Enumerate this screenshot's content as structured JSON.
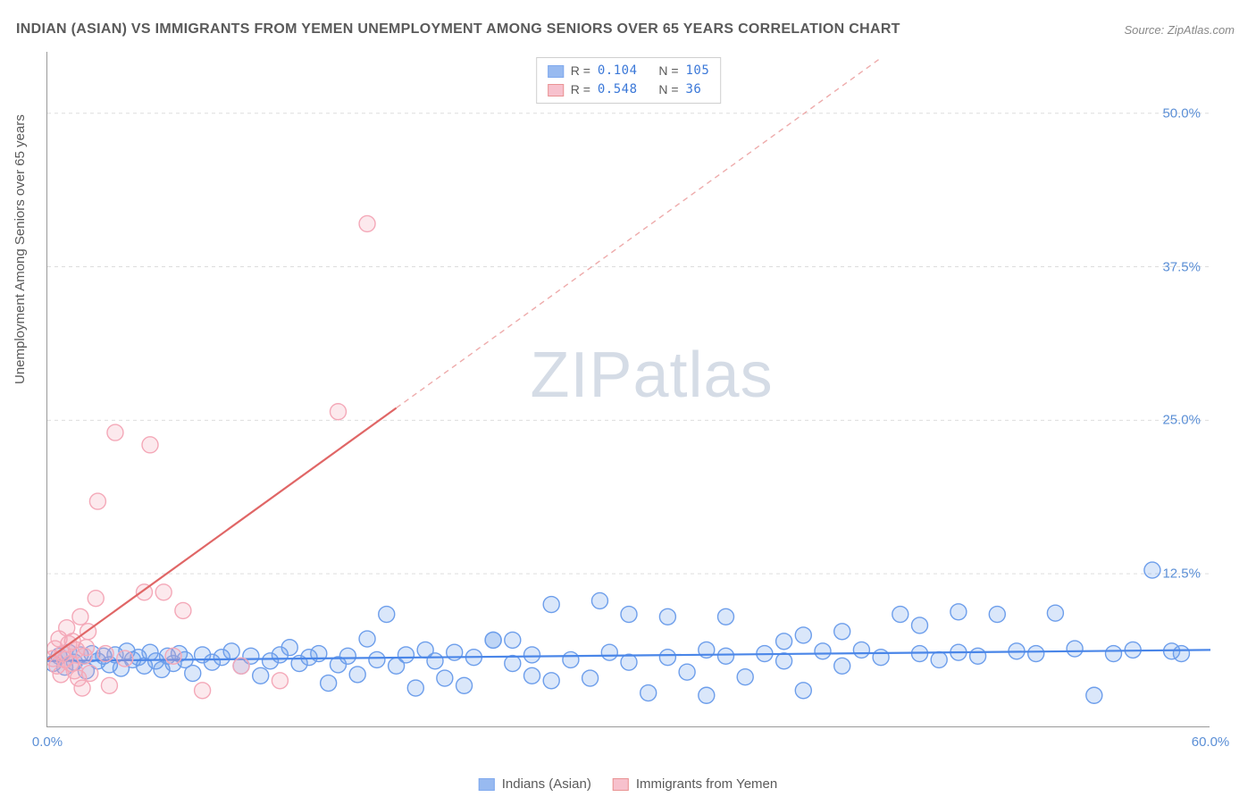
{
  "title": "INDIAN (ASIAN) VS IMMIGRANTS FROM YEMEN UNEMPLOYMENT AMONG SENIORS OVER 65 YEARS CORRELATION CHART",
  "source": "Source: ZipAtlas.com",
  "watermark_a": "ZIP",
  "watermark_b": "atlas",
  "y_axis_label": "Unemployment Among Seniors over 65 years",
  "chart": {
    "type": "scatter",
    "background_color": "#ffffff",
    "grid_color": "#dddddd",
    "axis_color": "#999999",
    "xlim": [
      0,
      60
    ],
    "ylim": [
      0,
      55
    ],
    "xtick_labels": [
      {
        "v": 0,
        "label": "0.0%"
      },
      {
        "v": 60,
        "label": "60.0%"
      }
    ],
    "ytick_labels": [
      {
        "v": 12.5,
        "label": "12.5%"
      },
      {
        "v": 25.0,
        "label": "25.0%"
      },
      {
        "v": 37.5,
        "label": "37.5%"
      },
      {
        "v": 50.0,
        "label": "50.0%"
      }
    ],
    "grid_rows": [
      12.5,
      25.0,
      37.5,
      50.0
    ],
    "marker_radius": 9,
    "marker_fill_opacity": 0.25,
    "line_width": 2.2,
    "series": [
      {
        "id": "indians",
        "label": "Indians (Asian)",
        "color": "#6d9eeb",
        "stroke_color": "#4a86e8",
        "R": "0.104",
        "N": "105",
        "trend": {
          "x1": 0,
          "y1": 5.4,
          "x2": 60,
          "y2": 6.3,
          "dash": "0",
          "extrap_dash": "0"
        },
        "points": [
          [
            0.3,
            5.2
          ],
          [
            0.6,
            5.8
          ],
          [
            0.9,
            4.9
          ],
          [
            1.1,
            6.1
          ],
          [
            1.4,
            5.3
          ],
          [
            1.7,
            5.9
          ],
          [
            2.0,
            4.6
          ],
          [
            2.3,
            6.0
          ],
          [
            2.6,
            5.4
          ],
          [
            2.9,
            5.8
          ],
          [
            3.2,
            5.1
          ],
          [
            3.5,
            5.9
          ],
          [
            3.8,
            4.8
          ],
          [
            4.1,
            6.2
          ],
          [
            4.4,
            5.5
          ],
          [
            4.7,
            5.7
          ],
          [
            5.0,
            5.0
          ],
          [
            5.3,
            6.1
          ],
          [
            5.6,
            5.4
          ],
          [
            5.9,
            4.7
          ],
          [
            6.2,
            5.8
          ],
          [
            6.5,
            5.2
          ],
          [
            6.8,
            6.0
          ],
          [
            7.1,
            5.5
          ],
          [
            7.5,
            4.4
          ],
          [
            8.0,
            5.9
          ],
          [
            8.5,
            5.3
          ],
          [
            9.0,
            5.7
          ],
          [
            9.5,
            6.2
          ],
          [
            10.0,
            5.0
          ],
          [
            10.5,
            5.8
          ],
          [
            11.0,
            4.2
          ],
          [
            11.5,
            5.4
          ],
          [
            12.0,
            5.9
          ],
          [
            12.5,
            6.5
          ],
          [
            13.0,
            5.2
          ],
          [
            13.5,
            5.7
          ],
          [
            14.0,
            6.0
          ],
          [
            14.5,
            3.6
          ],
          [
            15.0,
            5.1
          ],
          [
            15.5,
            5.8
          ],
          [
            16.0,
            4.3
          ],
          [
            16.5,
            7.2
          ],
          [
            17.0,
            5.5
          ],
          [
            17.5,
            9.2
          ],
          [
            18.0,
            5.0
          ],
          [
            18.5,
            5.9
          ],
          [
            19.0,
            3.2
          ],
          [
            19.5,
            6.3
          ],
          [
            20.0,
            5.4
          ],
          [
            20.5,
            4.0
          ],
          [
            21.0,
            6.1
          ],
          [
            21.5,
            3.4
          ],
          [
            22.0,
            5.7
          ],
          [
            23.0,
            7.1
          ],
          [
            23.0,
            7.1
          ],
          [
            24.0,
            5.2
          ],
          [
            24.0,
            7.1
          ],
          [
            25.0,
            5.9
          ],
          [
            25.0,
            4.2
          ],
          [
            26.0,
            3.8
          ],
          [
            26.0,
            10.0
          ],
          [
            27.0,
            5.5
          ],
          [
            28.0,
            4.0
          ],
          [
            28.5,
            10.3
          ],
          [
            29.0,
            6.1
          ],
          [
            30.0,
            5.3
          ],
          [
            30.0,
            9.2
          ],
          [
            31.0,
            2.8
          ],
          [
            32.0,
            5.7
          ],
          [
            32.0,
            9.0
          ],
          [
            33.0,
            4.5
          ],
          [
            34.0,
            6.3
          ],
          [
            34.0,
            2.6
          ],
          [
            35.0,
            5.8
          ],
          [
            35.0,
            9.0
          ],
          [
            36.0,
            4.1
          ],
          [
            37.0,
            6.0
          ],
          [
            38.0,
            5.4
          ],
          [
            38.0,
            7.0
          ],
          [
            39.0,
            7.5
          ],
          [
            39.0,
            3.0
          ],
          [
            40.0,
            6.2
          ],
          [
            41.0,
            5.0
          ],
          [
            41.0,
            7.8
          ],
          [
            42.0,
            6.3
          ],
          [
            43.0,
            5.7
          ],
          [
            44.0,
            9.2
          ],
          [
            45.0,
            6.0
          ],
          [
            45.0,
            8.3
          ],
          [
            46.0,
            5.5
          ],
          [
            47.0,
            6.1
          ],
          [
            47.0,
            9.4
          ],
          [
            48.0,
            5.8
          ],
          [
            49.0,
            9.2
          ],
          [
            50.0,
            6.2
          ],
          [
            51.0,
            6.0
          ],
          [
            52.0,
            9.3
          ],
          [
            53.0,
            6.4
          ],
          [
            54.0,
            2.6
          ],
          [
            55.0,
            6.0
          ],
          [
            56.0,
            6.3
          ],
          [
            57.0,
            12.8
          ],
          [
            58.0,
            6.2
          ],
          [
            58.5,
            6.0
          ]
        ]
      },
      {
        "id": "yemen",
        "label": "Immigrants from Yemen",
        "color": "#f4a8b8",
        "stroke_color": "#e06666",
        "R": "0.548",
        "N": "36",
        "trend": {
          "x1": 0,
          "y1": 5.5,
          "x2": 18,
          "y2": 26.0,
          "dash": "0",
          "extrap_x2": 43,
          "extrap_y2": 54.5,
          "extrap_dash": "6 5"
        },
        "points": [
          [
            0.3,
            5.6
          ],
          [
            0.4,
            6.4
          ],
          [
            0.5,
            5.0
          ],
          [
            0.6,
            7.2
          ],
          [
            0.7,
            4.3
          ],
          [
            0.8,
            6.0
          ],
          [
            0.9,
            5.5
          ],
          [
            1.0,
            8.1
          ],
          [
            1.1,
            6.8
          ],
          [
            1.2,
            5.2
          ],
          [
            1.3,
            7.0
          ],
          [
            1.4,
            4.6
          ],
          [
            1.5,
            6.3
          ],
          [
            1.6,
            4.0
          ],
          [
            1.7,
            9.0
          ],
          [
            1.8,
            3.2
          ],
          [
            1.9,
            5.8
          ],
          [
            2.0,
            6.5
          ],
          [
            2.1,
            7.8
          ],
          [
            2.2,
            4.4
          ],
          [
            2.5,
            10.5
          ],
          [
            2.6,
            18.4
          ],
          [
            3.0,
            6.0
          ],
          [
            3.2,
            3.4
          ],
          [
            3.5,
            24.0
          ],
          [
            4.0,
            5.6
          ],
          [
            5.0,
            11.0
          ],
          [
            5.3,
            23.0
          ],
          [
            6.0,
            11.0
          ],
          [
            6.5,
            5.8
          ],
          [
            7.0,
            9.5
          ],
          [
            8.0,
            3.0
          ],
          [
            10.0,
            5.0
          ],
          [
            12.0,
            3.8
          ],
          [
            15.0,
            25.7
          ],
          [
            16.5,
            41.0
          ]
        ]
      }
    ]
  },
  "legend_bottom": [
    {
      "swatch": "indians",
      "label": "Indians (Asian)"
    },
    {
      "swatch": "yemen",
      "label": "Immigrants from Yemen"
    }
  ]
}
